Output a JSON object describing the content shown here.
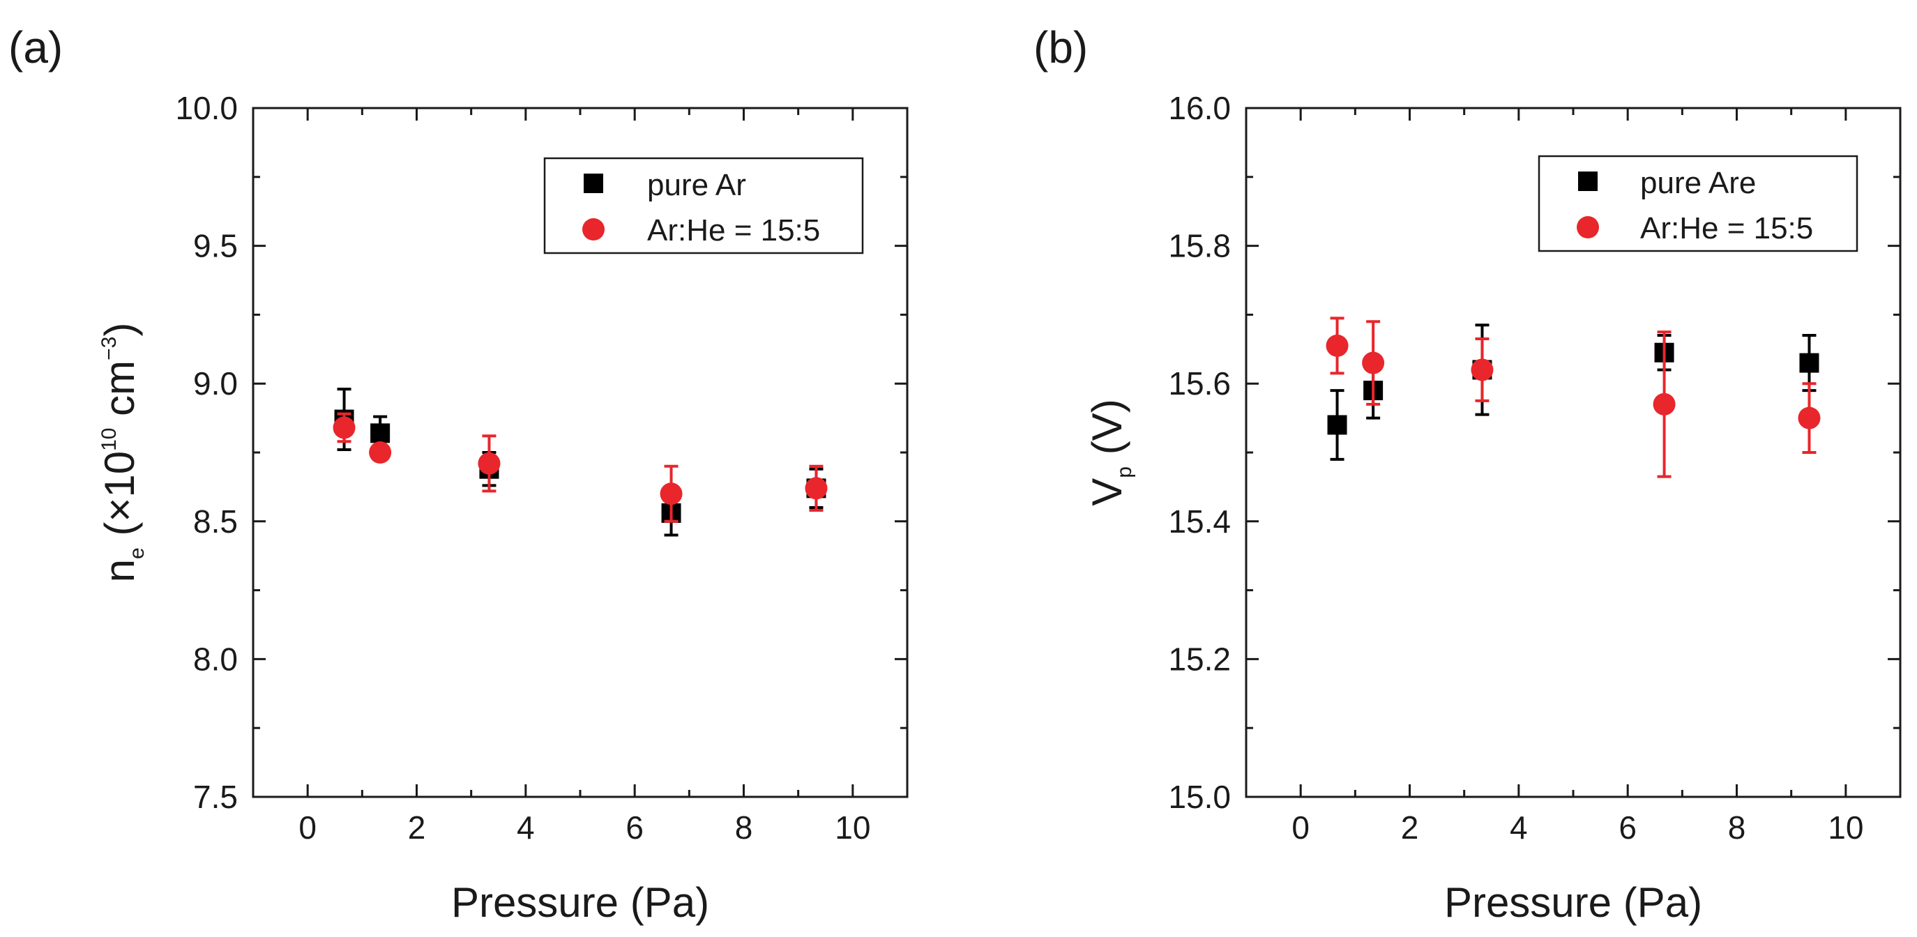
{
  "chart_data": [
    {
      "type": "scatter",
      "panel_label": "(a)",
      "xlabel": "Pressure (Pa)",
      "ylabel": {
        "main": "n",
        "sub": "e",
        "unit_open": " (×10",
        "unit_sup": "10",
        "unit_mid": " cm",
        "unit_sup2": "−3",
        "unit_close": ")"
      },
      "xlim": [
        -1,
        11
      ],
      "ylim": [
        7.5,
        10.0
      ],
      "xticks": [
        0,
        2,
        4,
        6,
        8,
        10
      ],
      "xtick_labels": [
        "0",
        "2",
        "4",
        "6",
        "8",
        "10"
      ],
      "yticks": [
        7.5,
        8.0,
        8.5,
        9.0,
        9.5,
        10.0
      ],
      "ytick_labels": [
        "7.5",
        "8.0",
        "8.5",
        "9.0",
        "9.5",
        "10.0"
      ],
      "legend_position": "top-right",
      "series": [
        {
          "name": "pure Ar",
          "marker": "square",
          "color": "#000000",
          "x": [
            0.67,
            1.33,
            3.33,
            6.67,
            9.33
          ],
          "y": [
            8.87,
            8.82,
            8.69,
            8.53,
            8.62
          ],
          "yerr": [
            0.11,
            0.06,
            0.06,
            0.08,
            0.07
          ]
        },
        {
          "name": "Ar:He = 15:5",
          "marker": "circle",
          "color": "#e8262b",
          "x": [
            0.67,
            1.33,
            3.33,
            6.67,
            9.33
          ],
          "y": [
            8.84,
            8.75,
            8.71,
            8.6,
            8.62
          ],
          "yerr": [
            0.05,
            0.02,
            0.1,
            0.1,
            0.08
          ]
        }
      ]
    },
    {
      "type": "scatter",
      "panel_label": "(b)",
      "xlabel": "Pressure (Pa)",
      "ylabel": {
        "main": "V",
        "sub": "p",
        "unit_open": " (V)"
      },
      "xlim": [
        -1,
        11
      ],
      "ylim": [
        15.0,
        16.0
      ],
      "xticks": [
        0,
        2,
        4,
        6,
        8,
        10
      ],
      "xtick_labels": [
        "0",
        "2",
        "4",
        "6",
        "8",
        "10"
      ],
      "yticks": [
        15.0,
        15.2,
        15.4,
        15.6,
        15.8,
        16.0
      ],
      "ytick_labels": [
        "15.0",
        "15.2",
        "15.4",
        "15.6",
        "15.8",
        "16.0"
      ],
      "legend_position": "top-right",
      "series": [
        {
          "name": "pure Are",
          "marker": "square",
          "color": "#000000",
          "x": [
            0.67,
            1.33,
            3.33,
            6.67,
            9.33
          ],
          "y": [
            15.54,
            15.59,
            15.62,
            15.645,
            15.63
          ],
          "yerr": [
            0.05,
            0.04,
            0.065,
            0.025,
            0.04
          ]
        },
        {
          "name": "Ar:He = 15:5",
          "marker": "circle",
          "color": "#e8262b",
          "x": [
            0.67,
            1.33,
            3.33,
            6.67,
            9.33
          ],
          "y": [
            15.655,
            15.63,
            15.62,
            15.57,
            15.55
          ],
          "yerr": [
            0.04,
            0.06,
            0.045,
            0.105,
            0.05
          ]
        }
      ]
    }
  ]
}
